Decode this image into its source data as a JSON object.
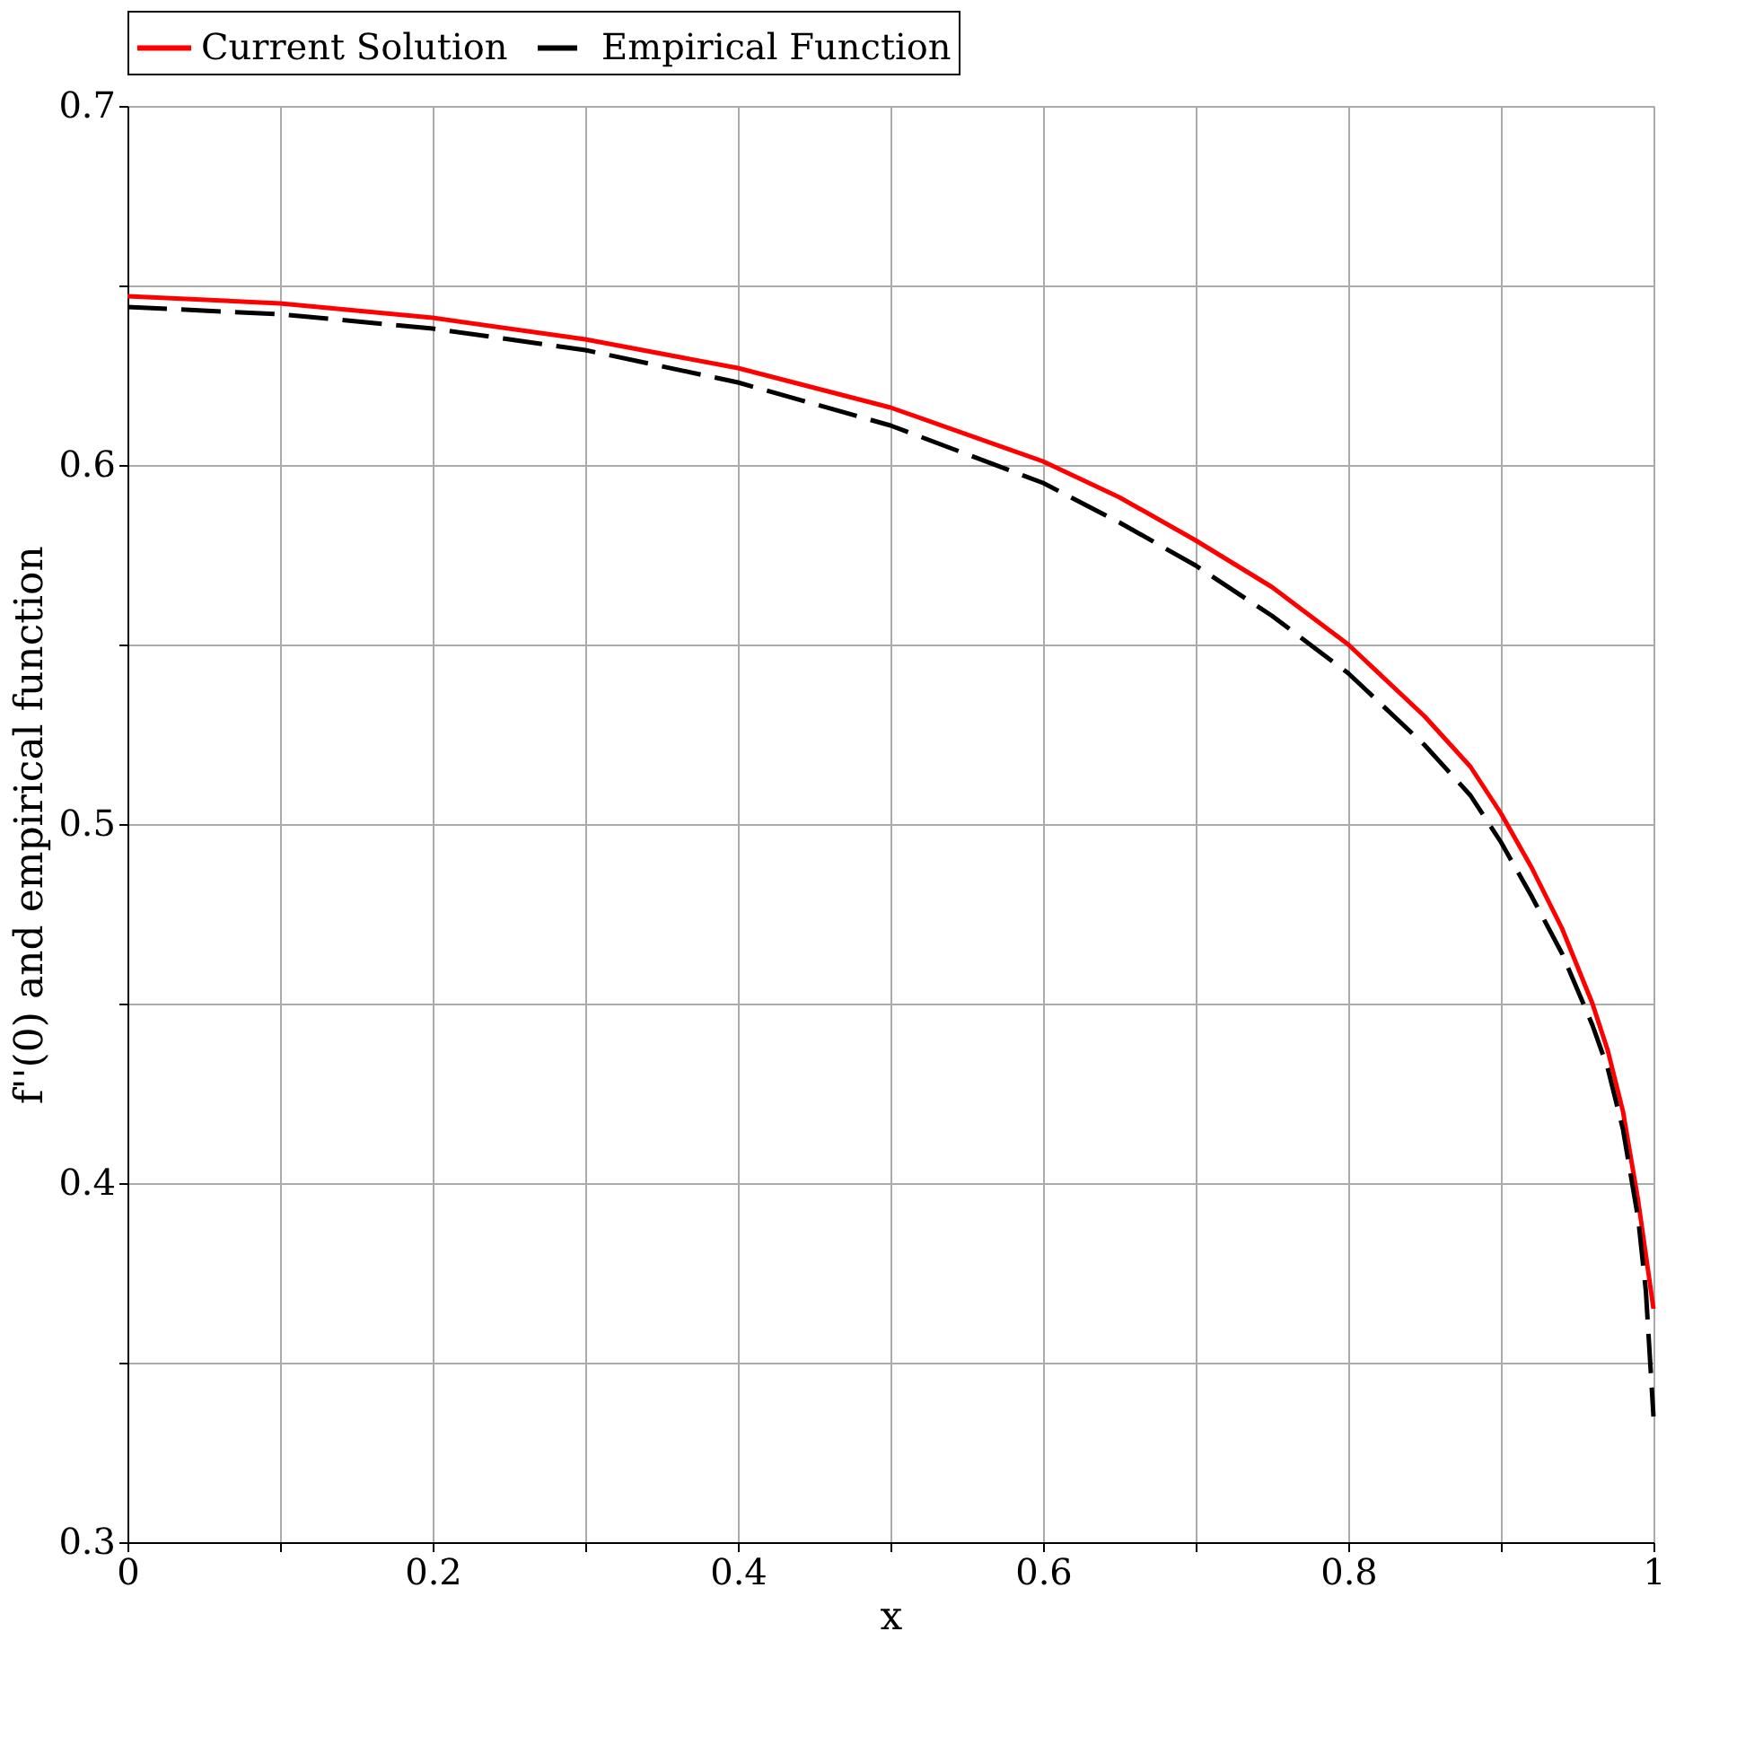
{
  "chart_data": {
    "type": "line",
    "xlabel": "x",
    "ylabel": "f''(0) and empirical function",
    "xlim": [
      0,
      1
    ],
    "ylim": [
      0.3,
      0.7
    ],
    "xticks": [
      0,
      {
        "value": 0.1,
        "label": null
      },
      0.2,
      {
        "value": 0.3,
        "label": null
      },
      0.4,
      {
        "value": 0.5,
        "label": null
      },
      0.6,
      {
        "value": 0.7,
        "label": null
      },
      0.8,
      {
        "value": 0.9,
        "label": null
      },
      1
    ],
    "yticks": [
      0.3,
      {
        "value": 0.35,
        "label": null
      },
      0.4,
      {
        "value": 0.45,
        "label": null
      },
      0.5,
      {
        "value": 0.55,
        "label": null
      },
      0.6,
      {
        "value": 0.65,
        "label": null
      },
      0.7
    ],
    "grid": true,
    "legend": "top",
    "marker": "none",
    "x": [
      0,
      0.1,
      0.2,
      0.3,
      0.4,
      0.5,
      0.6,
      0.65,
      0.7,
      0.75,
      0.8,
      0.85,
      0.88,
      0.9,
      0.92,
      0.94,
      0.96,
      0.97,
      0.98,
      0.99,
      0.995,
      1
    ],
    "series": [
      {
        "name": "Current Solution",
        "color": "#ff0000",
        "line_style": "solid",
        "values": [
          0.647,
          0.645,
          0.641,
          0.635,
          0.627,
          0.616,
          0.601,
          0.591,
          0.579,
          0.566,
          0.55,
          0.53,
          0.516,
          0.503,
          0.488,
          0.471,
          0.45,
          0.437,
          0.42,
          0.395,
          0.38,
          0.365
        ]
      },
      {
        "name": "Empirical Function",
        "color": "#000000",
        "line_style": "dashed",
        "values": [
          0.644,
          0.642,
          0.638,
          0.632,
          0.623,
          0.611,
          0.595,
          0.584,
          0.572,
          0.558,
          0.542,
          0.522,
          0.508,
          0.495,
          0.48,
          0.464,
          0.444,
          0.432,
          0.415,
          0.39,
          0.37,
          0.335
        ]
      }
    ]
  }
}
